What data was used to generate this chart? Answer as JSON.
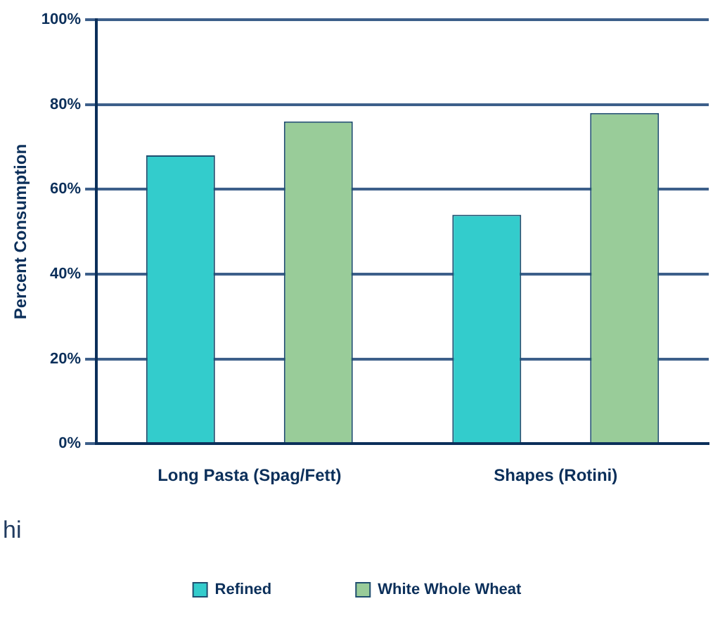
{
  "chart_data": {
    "type": "bar",
    "ylabel": "Percent Consumption",
    "categories": [
      "Long Pasta (Spag/Fett)",
      "Shapes (Rotini)"
    ],
    "series": [
      {
        "name": "Refined",
        "color": "#33cccc",
        "values": [
          68,
          54
        ]
      },
      {
        "name": "White Whole Wheat",
        "color": "#99cc99",
        "values": [
          76,
          78
        ]
      }
    ],
    "ylim": [
      0,
      100
    ],
    "yticks": [
      {
        "value": 0,
        "label": "0%"
      },
      {
        "value": 20,
        "label": "20%"
      },
      {
        "value": 40,
        "label": "40%"
      },
      {
        "value": 60,
        "label": "60%"
      },
      {
        "value": 80,
        "label": "80%"
      },
      {
        "value": 100,
        "label": "100%"
      }
    ],
    "grid": "y",
    "legend": "bottom",
    "annotations": [
      "hi"
    ]
  }
}
